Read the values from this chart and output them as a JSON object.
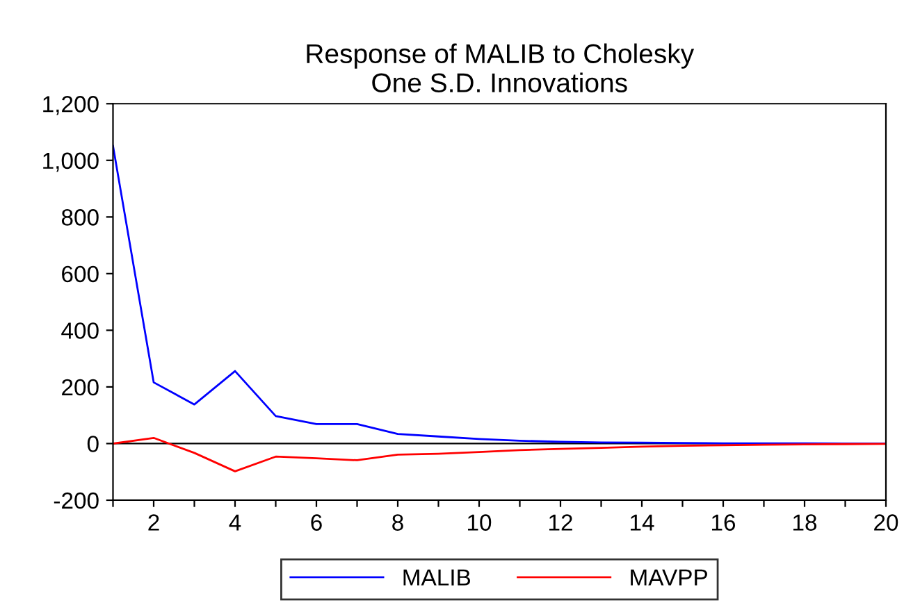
{
  "chart_data": {
    "type": "line",
    "title": "Response of MALIB to Cholesky\nOne S.D. Innovations",
    "x": [
      1,
      2,
      3,
      4,
      5,
      6,
      7,
      8,
      9,
      10,
      11,
      12,
      13,
      14,
      15,
      16,
      17,
      18,
      19,
      20
    ],
    "series": [
      {
        "name": "MALIB",
        "color": "#0000ff",
        "values": [
          1051,
          216,
          138,
          256,
          97,
          69,
          69,
          34,
          25,
          16,
          10,
          6,
          4,
          3,
          2,
          1,
          1,
          0.5,
          0,
          0
        ]
      },
      {
        "name": "MAVPP",
        "color": "#ff0000",
        "values": [
          0,
          20,
          -33,
          -98,
          -46,
          -52,
          -59,
          -39,
          -36,
          -30,
          -23,
          -19,
          -15,
          -11,
          -8,
          -6,
          -4,
          -3,
          -2,
          -1
        ]
      }
    ],
    "xlim": [
      1,
      20
    ],
    "xticks": [
      {
        "value": 1,
        "label": null
      },
      2,
      {
        "value": 3,
        "label": null
      },
      4,
      {
        "value": 5,
        "label": null
      },
      6,
      {
        "value": 7,
        "label": null
      },
      8,
      {
        "value": 9,
        "label": null
      },
      10,
      {
        "value": 11,
        "label": null
      },
      12,
      {
        "value": 13,
        "label": null
      },
      14,
      {
        "value": 15,
        "label": null
      },
      16,
      {
        "value": 17,
        "label": null
      },
      18,
      {
        "value": 19,
        "label": null
      },
      20
    ],
    "ylim": [
      -200,
      1200
    ],
    "yticks": [
      {
        "value": -200,
        "label": "-200"
      },
      0,
      200,
      400,
      600,
      800,
      {
        "value": 1000,
        "label": "1,000"
      },
      {
        "value": 1200,
        "label": "1,200"
      }
    ],
    "ref_lines": [
      {
        "axis": "y",
        "value": 0,
        "color": "#000000"
      }
    ],
    "grid": false,
    "legend": "bottom",
    "marker": "none",
    "line_style": "solid"
  }
}
